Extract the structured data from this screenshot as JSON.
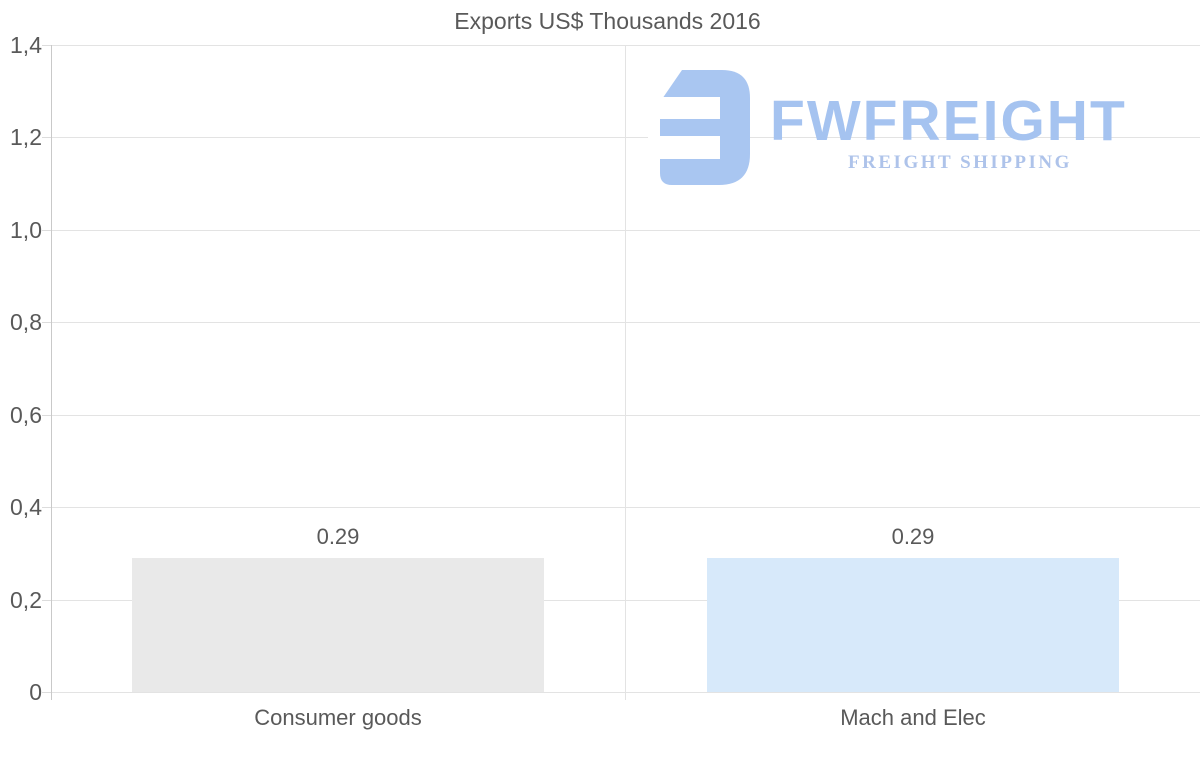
{
  "title": "Exports US$ Thousands 2016",
  "watermark": {
    "brand": "FWFREIGHT",
    "tagline": "FREIGHT SHIPPING",
    "brand_color": "#a5c3f0",
    "tagline_color": "#aec3ea",
    "icon_color": "#a9c6f1"
  },
  "chart_data": {
    "type": "bar",
    "title": "Exports US$ Thousands 2016",
    "categories": [
      "Consumer goods",
      "Mach and Elec"
    ],
    "values": [
      0.29,
      0.29
    ],
    "value_labels": [
      "0.29",
      "0.29"
    ],
    "bar_colors": [
      "#e9e9e9",
      "#d7e9fa"
    ],
    "xlabel": "",
    "ylabel": "",
    "ylim": [
      0,
      1.4
    ],
    "ytick_step": 0.2,
    "ytick_labels": [
      "0",
      "0,2",
      "0,4",
      "0,6",
      "0,8",
      "1,0",
      "1,2",
      "1,4"
    ],
    "decimal_separator_axis": "comma",
    "grid": true,
    "legend": "none",
    "colors": {
      "text": "#595959",
      "gridline": "#e3e3e3",
      "axis_line": "#c9c9c9",
      "background": "#ffffff"
    }
  }
}
